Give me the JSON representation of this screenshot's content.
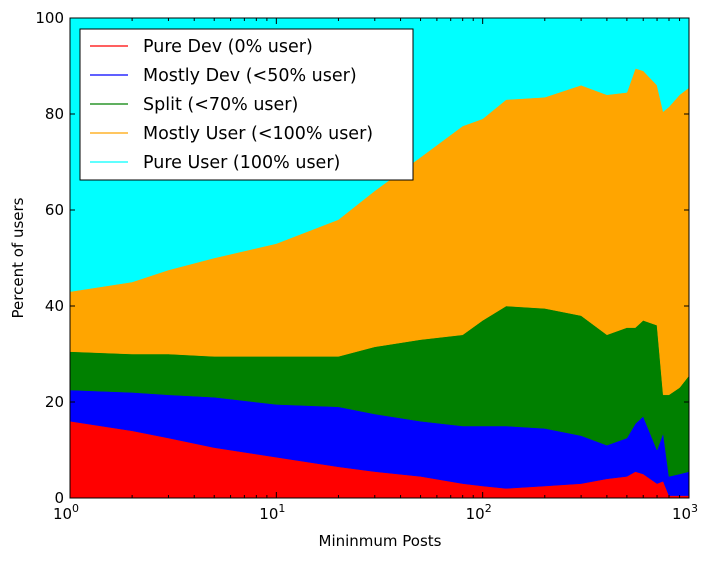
{
  "chart_data": {
    "type": "area",
    "stacked": true,
    "title": "",
    "xlabel": "Mininmum Posts",
    "ylabel": "Percent of users",
    "xscale": "log",
    "xlim": [
      1,
      1000
    ],
    "ylim": [
      0,
      100
    ],
    "x_ticks": [
      {
        "value": 1,
        "base": "10",
        "exp": "0"
      },
      {
        "value": 10,
        "base": "10",
        "exp": "1"
      },
      {
        "value": 100,
        "base": "10",
        "exp": "2"
      },
      {
        "value": 1000,
        "base": "10",
        "exp": "3"
      }
    ],
    "y_ticks": [
      "0",
      "20",
      "40",
      "60",
      "80",
      "100"
    ],
    "legend_position": "top-left",
    "grid": false,
    "x": [
      1,
      2,
      3,
      5,
      10,
      20,
      30,
      50,
      80,
      100,
      130,
      200,
      300,
      400,
      500,
      550,
      600,
      700,
      750,
      800,
      900,
      1000
    ],
    "series": [
      {
        "name": "Pure Dev (0% user)",
        "color": "#ff0000",
        "values": [
          16,
          14,
          12.5,
          10.5,
          8.5,
          6.5,
          5.5,
          4.5,
          3,
          2.5,
          2,
          2.5,
          3,
          4,
          4.5,
          5.5,
          5,
          3,
          3.5,
          0.5,
          0.5,
          0.5
        ]
      },
      {
        "name": "Mostly Dev (<50% user)",
        "color": "#0000ff",
        "values": [
          6.5,
          8,
          9,
          10.5,
          11,
          12.5,
          12,
          11.5,
          12,
          12.5,
          13,
          12,
          10,
          7,
          8,
          10,
          12,
          7,
          10,
          4,
          4.5,
          5
        ]
      },
      {
        "name": "Split (<70% user)",
        "color": "#008000",
        "values": [
          8,
          8,
          8.5,
          8.5,
          10,
          10.5,
          14,
          17,
          19,
          22,
          25,
          25,
          25,
          23,
          23,
          20,
          20,
          26,
          8,
          17,
          18,
          20
        ]
      },
      {
        "name": "Mostly User (<100% user)",
        "color": "#ffa500",
        "values": [
          12.5,
          15,
          17.5,
          20.5,
          23.5,
          28.5,
          32.5,
          38,
          43.5,
          42,
          43,
          44,
          48,
          50,
          49,
          54,
          52,
          50,
          59,
          60,
          61,
          60
        ]
      },
      {
        "name": "Pure User (100% user)",
        "color": "#00ffff",
        "values": [
          57,
          55,
          52.5,
          50,
          47,
          42,
          36,
          29,
          22.5,
          21,
          17,
          16.5,
          14,
          16,
          15.5,
          10.5,
          11,
          14,
          19.5,
          18.5,
          16,
          14.5
        ]
      }
    ]
  }
}
